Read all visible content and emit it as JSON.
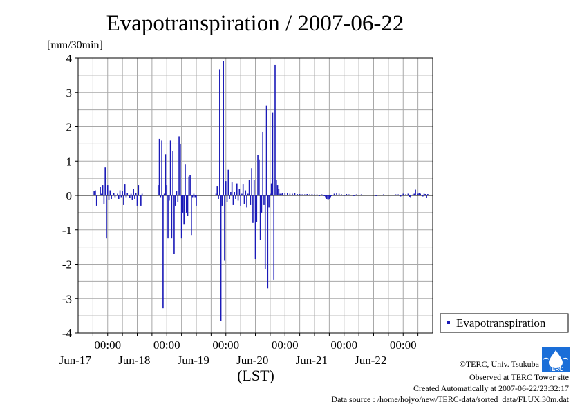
{
  "chart_data": {
    "type": "bar",
    "title": "Evapotranspiration / 2007-06-22",
    "ylabel": "[mm/30min]",
    "xlabel": "(LST)",
    "ylim": [
      -4,
      4
    ],
    "yticks": [
      "4",
      "3",
      "2",
      "1",
      "0",
      "-1",
      "-2",
      "-3",
      "-4"
    ],
    "xlim_hours": [
      0,
      144
    ],
    "xticks": [
      {
        "time": "00:00",
        "date": "Jun-17"
      },
      {
        "time": "00:00",
        "date": "Jun-18"
      },
      {
        "time": "00:00",
        "date": "Jun-19"
      },
      {
        "time": "00:00",
        "date": "Jun-20"
      },
      {
        "time": "00:00",
        "date": "Jun-21"
      },
      {
        "time": "00:00",
        "date": "Jun-22"
      }
    ],
    "grid": true,
    "legend_position": "bottom-right-outside",
    "series": [
      {
        "name": "Evapotranspiration",
        "color": "#1a1ab8",
        "points": [
          [
            6.5,
            0.12
          ],
          [
            7.0,
            0.15
          ],
          [
            7.5,
            -0.3
          ],
          [
            9.0,
            0.25
          ],
          [
            9.5,
            0.05
          ],
          [
            10.0,
            0.3
          ],
          [
            10.5,
            -0.25
          ],
          [
            11.0,
            0.82
          ],
          [
            11.5,
            -1.25
          ],
          [
            12.0,
            0.3
          ],
          [
            12.5,
            -0.12
          ],
          [
            13.0,
            0.15
          ],
          [
            13.5,
            -0.1
          ],
          [
            14.5,
            0.08
          ],
          [
            15.0,
            -0.05
          ],
          [
            16.0,
            0.05
          ],
          [
            16.5,
            -0.1
          ],
          [
            17.0,
            0.15
          ],
          [
            17.5,
            -0.05
          ],
          [
            18.0,
            0.12
          ],
          [
            18.5,
            -0.28
          ],
          [
            19.0,
            0.32
          ],
          [
            19.5,
            -0.05
          ],
          [
            20.0,
            0.08
          ],
          [
            21.0,
            -0.08
          ],
          [
            21.5,
            0.05
          ],
          [
            22.0,
            -0.12
          ],
          [
            22.5,
            0.2
          ],
          [
            23.0,
            -0.1
          ],
          [
            23.5,
            0.08
          ],
          [
            24.0,
            -0.3
          ],
          [
            24.5,
            0.3
          ],
          [
            25.5,
            -0.3
          ],
          [
            26.0,
            0.05
          ],
          [
            32.5,
            0.3
          ],
          [
            33.0,
            1.65
          ],
          [
            33.5,
            -0.05
          ],
          [
            34.0,
            1.6
          ],
          [
            34.5,
            -3.28
          ],
          [
            35.0,
            0.05
          ],
          [
            35.5,
            1.2
          ],
          [
            36.0,
            0.3
          ],
          [
            36.5,
            -1.25
          ],
          [
            37.0,
            -0.15
          ],
          [
            37.5,
            1.6
          ],
          [
            38.0,
            -1.25
          ],
          [
            38.5,
            1.3
          ],
          [
            39.0,
            -1.7
          ],
          [
            39.5,
            -0.3
          ],
          [
            40.0,
            0.12
          ],
          [
            40.5,
            -0.2
          ],
          [
            41.0,
            1.72
          ],
          [
            41.5,
            1.5
          ],
          [
            42.0,
            -1.25
          ],
          [
            42.5,
            -0.5
          ],
          [
            43.0,
            -0.85
          ],
          [
            43.5,
            0.9
          ],
          [
            44.0,
            -0.5
          ],
          [
            44.5,
            -0.6
          ],
          [
            45.0,
            0.55
          ],
          [
            45.5,
            0.6
          ],
          [
            46.0,
            -1.15
          ],
          [
            46.5,
            -0.05
          ],
          [
            47.0,
            0.05
          ],
          [
            47.5,
            -0.05
          ],
          [
            48.0,
            -0.3
          ],
          [
            56.0,
            0.05
          ],
          [
            56.5,
            0.28
          ],
          [
            57.0,
            -0.1
          ],
          [
            57.5,
            3.67
          ],
          [
            58.0,
            -3.65
          ],
          [
            58.5,
            -0.3
          ],
          [
            59.0,
            3.9
          ],
          [
            59.5,
            -1.9
          ],
          [
            60.0,
            0.42
          ],
          [
            60.5,
            -0.2
          ],
          [
            61.0,
            0.75
          ],
          [
            61.5,
            -0.1
          ],
          [
            62.0,
            0.1
          ],
          [
            62.5,
            0.38
          ],
          [
            63.0,
            -0.28
          ],
          [
            63.5,
            0.1
          ],
          [
            64.0,
            -0.1
          ],
          [
            64.5,
            0.35
          ],
          [
            65.0,
            -0.15
          ],
          [
            65.5,
            0.2
          ],
          [
            66.0,
            -0.3
          ],
          [
            66.5,
            0.05
          ],
          [
            67.0,
            0.32
          ],
          [
            67.5,
            -0.25
          ],
          [
            68.0,
            0.15
          ],
          [
            68.5,
            -0.35
          ],
          [
            69.0,
            0.05
          ],
          [
            69.5,
            0.45
          ],
          [
            70.0,
            -0.28
          ],
          [
            70.5,
            0.8
          ],
          [
            71.0,
            -0.8
          ],
          [
            71.5,
            0.45
          ],
          [
            72.0,
            -1.85
          ],
          [
            72.5,
            -0.78
          ],
          [
            73.0,
            1.18
          ],
          [
            73.5,
            1.05
          ],
          [
            74.0,
            -1.3
          ],
          [
            74.5,
            -0.5
          ],
          [
            75.0,
            1.85
          ],
          [
            75.5,
            -0.28
          ],
          [
            76.0,
            -2.15
          ],
          [
            76.5,
            2.62
          ],
          [
            77.0,
            -2.7
          ],
          [
            77.5,
            -0.35
          ],
          [
            78.0,
            0.05
          ],
          [
            78.5,
            0.35
          ],
          [
            79.0,
            2.42
          ],
          [
            79.5,
            -2.45
          ],
          [
            80.0,
            3.8
          ],
          [
            80.5,
            0.45
          ],
          [
            81.0,
            0.3
          ],
          [
            81.5,
            0.2
          ],
          [
            82.0,
            0.05
          ],
          [
            82.5,
            0.05
          ],
          [
            83.0,
            0.08
          ],
          [
            84.0,
            0.06
          ],
          [
            85.0,
            0.07
          ],
          [
            86.0,
            0.05
          ],
          [
            87.0,
            0.05
          ],
          [
            88.0,
            0.06
          ],
          [
            89.0,
            0.04
          ],
          [
            90.0,
            0.04
          ],
          [
            91.0,
            0.03
          ],
          [
            92.0,
            0.03
          ],
          [
            93.0,
            0.04
          ],
          [
            94.0,
            0.03
          ],
          [
            95.0,
            0.04
          ],
          [
            96.0,
            0.03
          ],
          [
            97.0,
            0.03
          ],
          [
            98.0,
            -0.02
          ],
          [
            99.0,
            0.03
          ],
          [
            100.0,
            -0.02
          ],
          [
            100.5,
            -0.05
          ],
          [
            101.0,
            -0.1
          ],
          [
            101.5,
            -0.12
          ],
          [
            102.0,
            -0.1
          ],
          [
            102.5,
            -0.05
          ],
          [
            103.0,
            -0.02
          ],
          [
            104.0,
            0.05
          ],
          [
            105.0,
            0.08
          ],
          [
            106.0,
            0.05
          ],
          [
            107.0,
            0.03
          ],
          [
            108.0,
            -0.02
          ],
          [
            109.0,
            0.04
          ],
          [
            110.0,
            0.03
          ],
          [
            111.0,
            0.02
          ],
          [
            112.0,
            -0.02
          ],
          [
            113.0,
            0.03
          ],
          [
            114.0,
            0.02
          ],
          [
            115.0,
            0.03
          ],
          [
            116.0,
            0.02
          ],
          [
            117.0,
            0.02
          ],
          [
            118.0,
            0.02
          ],
          [
            119.0,
            0.02
          ],
          [
            120.0,
            0.02
          ],
          [
            121.0,
            -0.02
          ],
          [
            122.0,
            0.02
          ],
          [
            123.0,
            0.02
          ],
          [
            124.0,
            0.03
          ],
          [
            125.0,
            0.02
          ],
          [
            126.0,
            0.02
          ],
          [
            127.0,
            0.02
          ],
          [
            128.0,
            0.02
          ],
          [
            129.0,
            0.03
          ],
          [
            130.0,
            0.03
          ],
          [
            131.0,
            -0.03
          ],
          [
            132.0,
            0.05
          ],
          [
            133.0,
            0.03
          ],
          [
            134.0,
            0.05
          ],
          [
            134.5,
            -0.04
          ],
          [
            135.0,
            -0.05
          ],
          [
            136.0,
            0.03
          ],
          [
            136.5,
            0.05
          ],
          [
            137.0,
            0.17
          ],
          [
            138.0,
            0.05
          ],
          [
            138.5,
            0.06
          ],
          [
            139.0,
            0.05
          ],
          [
            140.0,
            -0.03
          ],
          [
            140.5,
            0.05
          ],
          [
            141.0,
            0.04
          ],
          [
            141.5,
            -0.08
          ],
          [
            142.0,
            0.04
          ]
        ]
      }
    ]
  },
  "legend": {
    "label": "Evapotranspiration"
  },
  "footer": {
    "credit": "©TERC, Univ. Tsukuba",
    "observed": "Observed at TERC Tower site",
    "created": "Created Automatically at 2007-06-22/23:32:17",
    "source": "Data source : /home/hojyo/new/TERC-data/sorted_data/FLUX.30m.dat",
    "logo_text": "TERC"
  }
}
